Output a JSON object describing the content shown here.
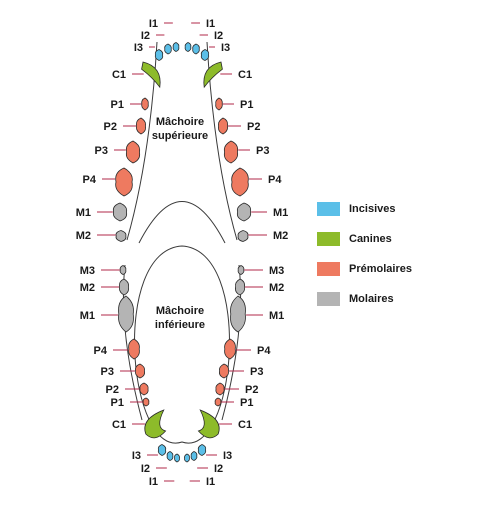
{
  "colors": {
    "incisor": "#5bbfe8",
    "canine": "#8dbb2a",
    "premolar": "#ee7a60",
    "molar": "#b4b4b4",
    "leader": "#b02a4a"
  },
  "jaws": {
    "upper_title": [
      "Mâchoire",
      "supérieure"
    ],
    "lower_title": [
      "Mâchoire",
      "inférieure"
    ]
  },
  "labels": {
    "I1": "I1",
    "I2": "I2",
    "I3": "I3",
    "C1": "C1",
    "P1": "P1",
    "P2": "P2",
    "P3": "P3",
    "P4": "P4",
    "M1": "M1",
    "M2": "M2",
    "M3": "M3"
  },
  "legend": [
    {
      "key": "incisors",
      "label": "Incisives",
      "color": "#5bbfe8"
    },
    {
      "key": "canines",
      "label": "Canines",
      "color": "#8dbb2a"
    },
    {
      "key": "premolars",
      "label": "Prémolaires",
      "color": "#ee7a60"
    },
    {
      "key": "molars",
      "label": "Molaires",
      "color": "#b4b4b4"
    }
  ]
}
